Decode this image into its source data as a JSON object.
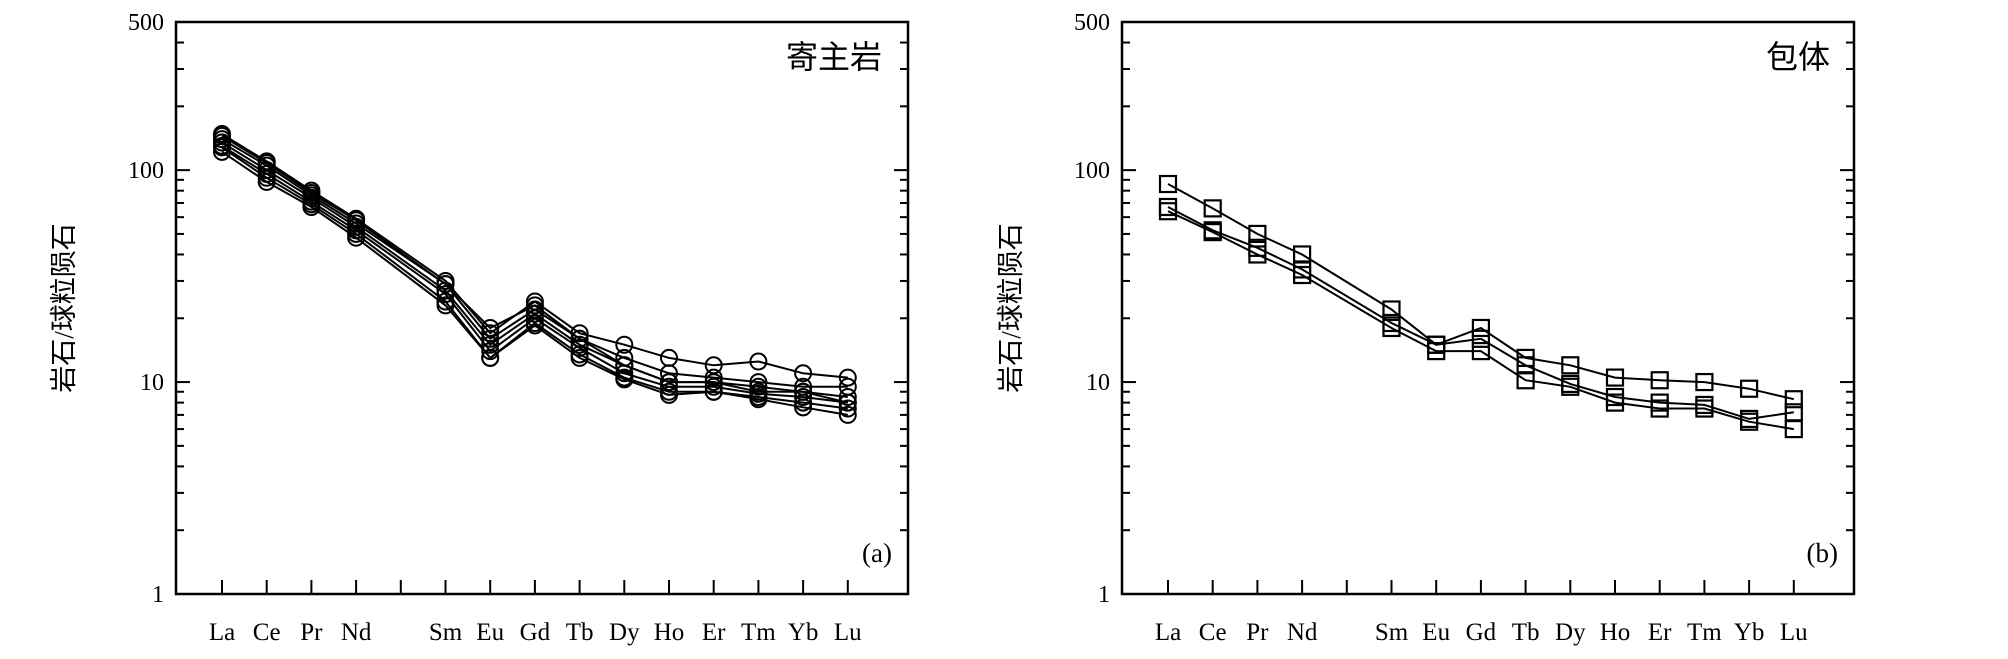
{
  "chart_data": [
    {
      "id": "a",
      "type": "line",
      "scale": "log",
      "ylim": [
        1,
        500
      ],
      "yticks": [
        "1",
        "10",
        "100",
        "500"
      ],
      "ylabel": "岩石/球粒陨石",
      "title": "寄主岩",
      "panel_label": "(a)",
      "marker": "circle",
      "grid": false,
      "categories": [
        "La",
        "Ce",
        "Pr",
        "Nd",
        "",
        "Sm",
        "Eu",
        "Gd",
        "Tb",
        "Dy",
        "Ho",
        "Er",
        "Tm",
        "Yb",
        "Lu"
      ],
      "series": [
        {
          "values": [
            148,
            110,
            80,
            59,
            null,
            30,
            17,
            24,
            17,
            15,
            13,
            12,
            12.5,
            11,
            10.5
          ]
        },
        {
          "values": [
            140,
            105,
            76,
            56,
            null,
            29,
            16,
            22,
            16,
            13,
            11,
            10.5,
            10,
            9.5,
            9.5
          ]
        },
        {
          "values": [
            135,
            100,
            74,
            54,
            null,
            27,
            15,
            21,
            15,
            12,
            10,
            10,
            9,
            9,
            8.5
          ]
        },
        {
          "values": [
            130,
            96,
            71,
            52,
            null,
            26,
            14,
            20,
            14.5,
            11,
            9.5,
            9.5,
            8.8,
            8.5,
            8
          ]
        },
        {
          "values": [
            128,
            92,
            69,
            50,
            null,
            24,
            13,
            19,
            13.5,
            10.5,
            9,
            9,
            8.5,
            8,
            7.5
          ]
        },
        {
          "values": [
            122,
            88,
            67,
            48,
            null,
            23,
            13,
            18.5,
            13,
            10.3,
            8.7,
            9,
            8.3,
            7.6,
            7
          ]
        },
        {
          "values": [
            145,
            108,
            78,
            58,
            null,
            29,
            18,
            23,
            16,
            12,
            10,
            10,
            9.5,
            9,
            8
          ]
        }
      ]
    },
    {
      "id": "b",
      "type": "line",
      "scale": "log",
      "ylim": [
        1,
        500
      ],
      "yticks": [
        "1",
        "10",
        "100",
        "500"
      ],
      "ylabel": "岩石/球粒陨石",
      "title": "包体",
      "panel_label": "(b)",
      "marker": "square",
      "grid": false,
      "categories": [
        "La",
        "Ce",
        "Pr",
        "Nd",
        "",
        "Sm",
        "Eu",
        "Gd",
        "Tb",
        "Dy",
        "Ho",
        "Er",
        "Tm",
        "Yb",
        "Lu"
      ],
      "series": [
        {
          "values": [
            86,
            66,
            50,
            40,
            null,
            22,
            15,
            18,
            13,
            12,
            10.5,
            10.2,
            10,
            9.3,
            8.3
          ]
        },
        {
          "values": [
            67,
            52,
            43,
            34,
            null,
            19,
            15,
            16,
            12,
            9.8,
            8.5,
            8,
            7.8,
            6.7,
            7.2
          ]
        },
        {
          "values": [
            64,
            51,
            40,
            32,
            null,
            18,
            14,
            14,
            10.2,
            9.5,
            8,
            7.5,
            7.5,
            6.5,
            6
          ]
        }
      ]
    }
  ]
}
